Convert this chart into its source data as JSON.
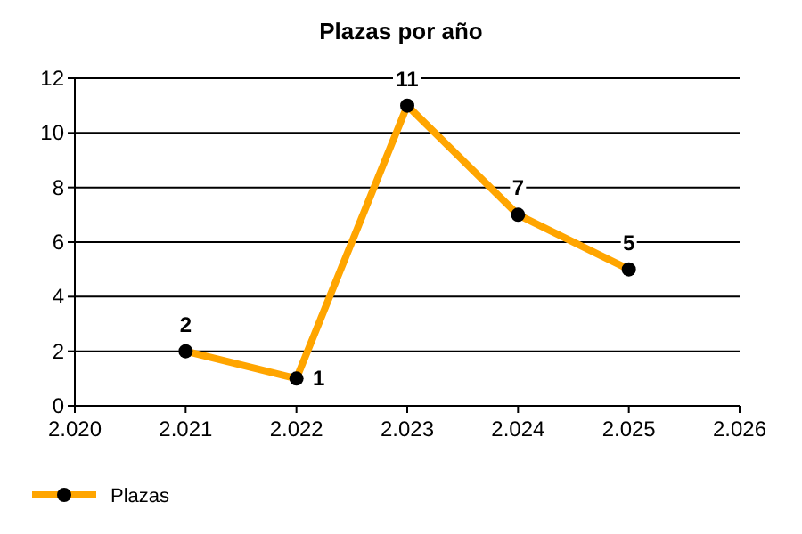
{
  "chart_data": {
    "type": "line",
    "title": "Plazas por año",
    "x": [
      2021,
      2022,
      2023,
      2024,
      2025
    ],
    "series": [
      {
        "name": "Plazas",
        "color": "#ffa500",
        "values": [
          2,
          1,
          11,
          7,
          5
        ]
      }
    ],
    "xlim": [
      2020,
      2026
    ],
    "xticks": [
      {
        "value": 2020,
        "label": "2.020"
      },
      {
        "value": 2021,
        "label": "2.021"
      },
      {
        "value": 2022,
        "label": "2.022"
      },
      {
        "value": 2023,
        "label": "2.023"
      },
      {
        "value": 2024,
        "label": "2.024"
      },
      {
        "value": 2025,
        "label": "2.025"
      },
      {
        "value": 2026,
        "label": "2.026"
      }
    ],
    "ylim": [
      0,
      12
    ],
    "yticks": [
      0,
      2,
      4,
      6,
      8,
      10,
      12
    ],
    "grid": "y",
    "data_labels": true,
    "legend": "bottom left",
    "marker": "circle"
  }
}
